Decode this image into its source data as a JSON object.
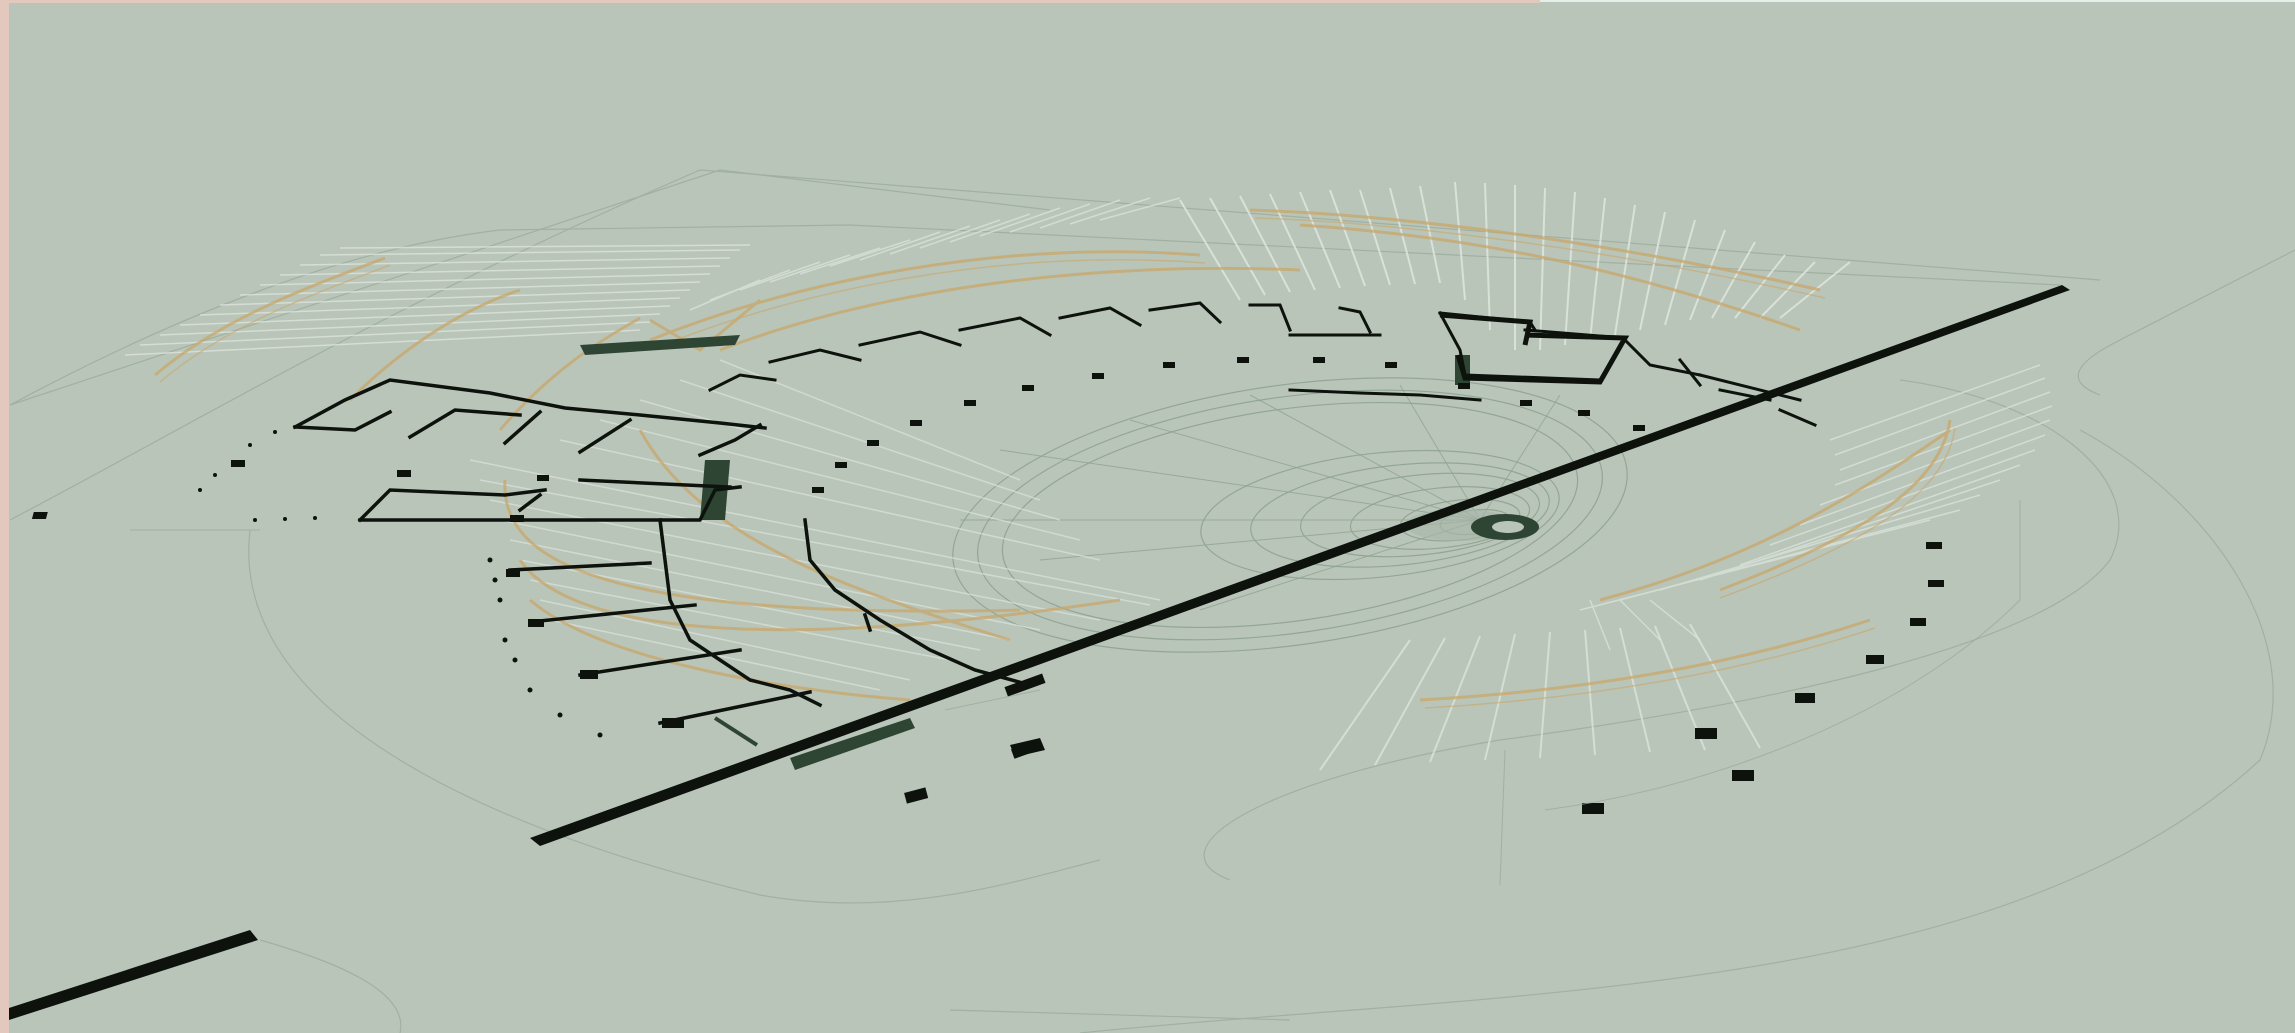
{
  "canvas": {
    "background": "#b9c5b9",
    "frame_edge_color": "#e3c9bd"
  },
  "palette": {
    "wall": "#0d120d",
    "section": "#2f4533",
    "ochre": "#c9a76a",
    "ghost": "#dfe6df",
    "guide": "#9aab9c"
  },
  "drawing": {
    "kind": "axonometric architectural plan",
    "text_labels": []
  }
}
